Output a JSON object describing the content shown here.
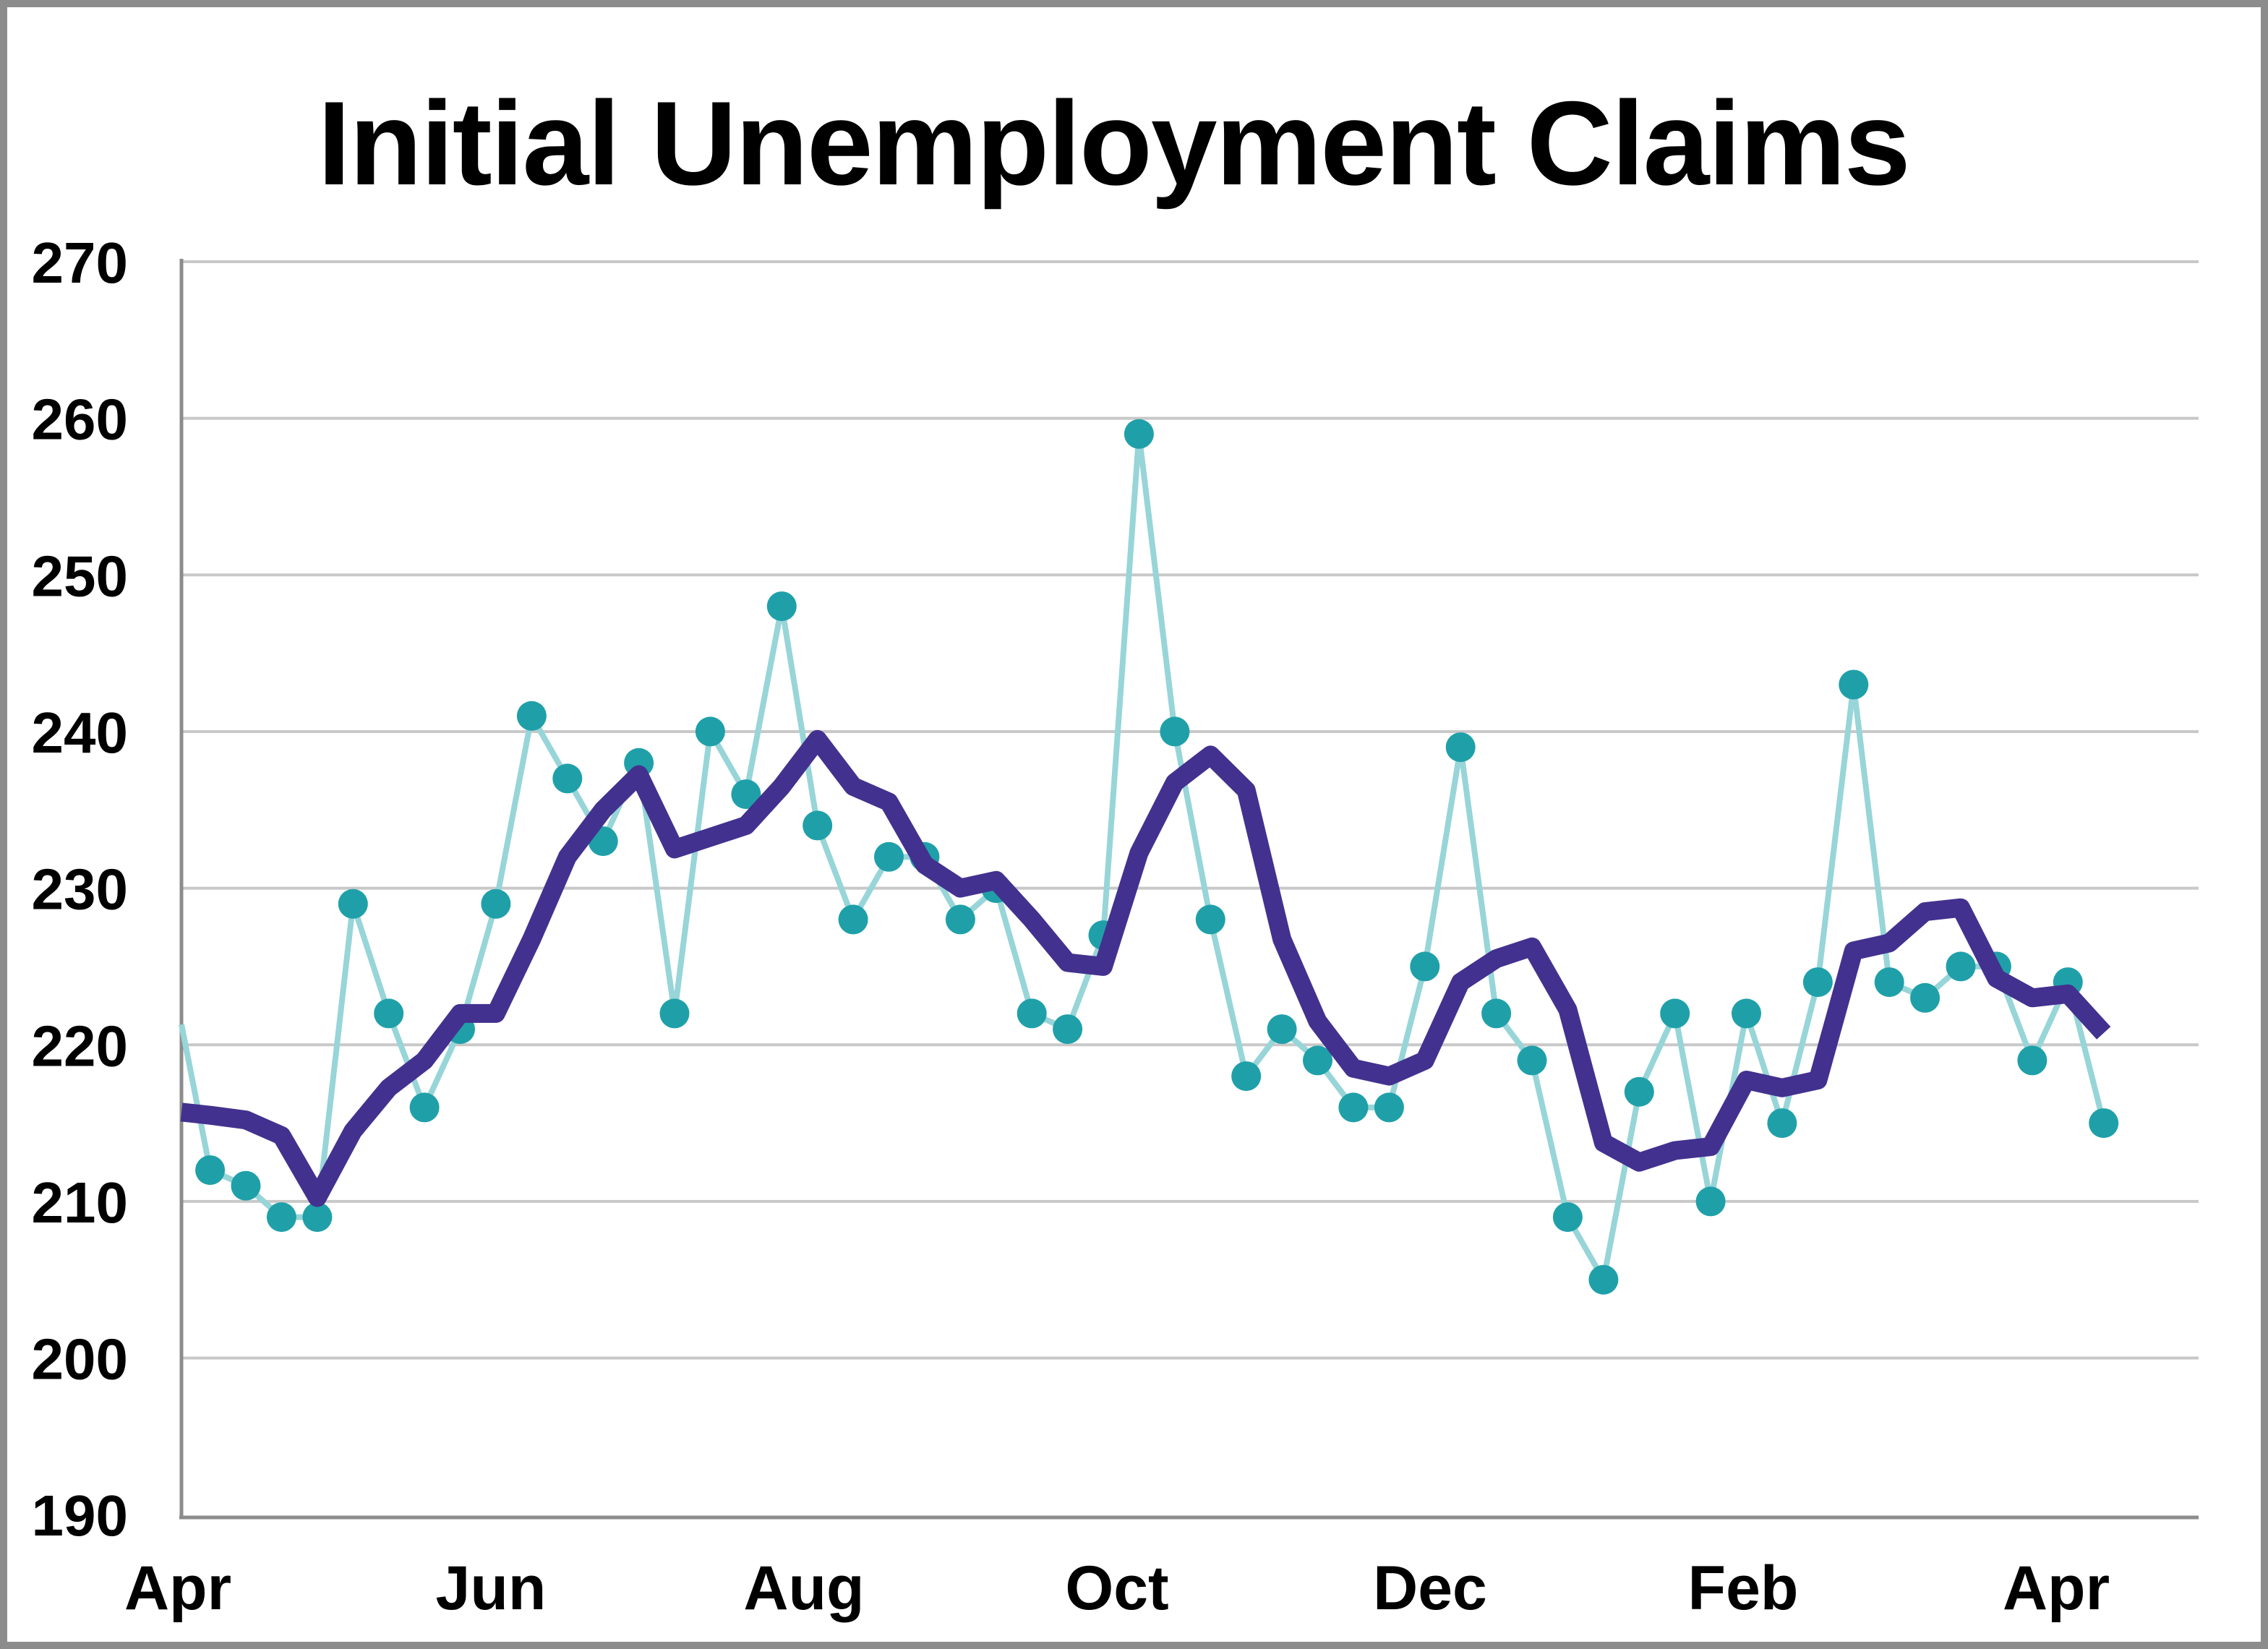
{
  "title": "Initial Unemployment Claims",
  "colors": {
    "background": "#FFFFFF",
    "page_border": "#8C8C8C",
    "axis_spine": "#8C8C8C",
    "gridline": "#C8C8C8",
    "marker_teal": "#1FA0A9",
    "marker_connector_teal": "#97D5D8",
    "moving_average_purple": "#43318F",
    "text": "#000000"
  },
  "chart_data": {
    "type": "line",
    "title": "Initial Unemployment Claims",
    "grid": "horizontal",
    "legend": "none",
    "ylim": [
      190,
      270
    ],
    "y_ticks": [
      270,
      260,
      250,
      240,
      230,
      220,
      210,
      200,
      190
    ],
    "x_tick_labels": [
      "Apr",
      "Jun",
      "Aug",
      "Oct",
      "Dec",
      "Feb",
      "Apr"
    ],
    "x_unit": "weeks",
    "series": [
      {
        "id": "teal-dots-weekly-claims",
        "style": "line+markers",
        "marker_color": "#1FA0A9",
        "line_color": "#97D5D8",
        "left_edge_value": 221.3,
        "values": [
          212,
          211,
          209,
          209,
          229,
          222,
          216,
          221,
          229,
          241,
          237,
          233,
          238,
          222,
          240,
          236,
          248,
          234,
          228,
          232,
          232,
          228,
          230,
          222,
          221,
          227,
          259,
          240,
          228,
          218,
          221,
          219,
          216,
          216,
          225,
          239,
          222,
          219,
          209,
          205,
          217,
          222,
          210,
          222,
          215,
          224,
          243,
          224,
          223,
          225,
          225,
          219,
          224,
          215
        ]
      },
      {
        "id": "purple-4-week-moving-average",
        "style": "line",
        "line_color": "#43318F",
        "left_edge_value": 215.7,
        "values": [
          215.5,
          215.2,
          214.2,
          210.25,
          214.5,
          217.25,
          219,
          222,
          222,
          226.75,
          232,
          235,
          237.25,
          232.5,
          233.25,
          234,
          236.5,
          239.5,
          236.5,
          235.5,
          231.5,
          230,
          230.5,
          228,
          225.25,
          225,
          232.25,
          236.75,
          238.5,
          236.25,
          226.75,
          221.5,
          218.5,
          218,
          219,
          224,
          225.5,
          226.25,
          222.25,
          213.75,
          212.5,
          213.25,
          213.5,
          217.75,
          217.25,
          217.75,
          226,
          226.5,
          228.5,
          228.75,
          224.25,
          223,
          223.25,
          220.75
        ]
      }
    ]
  }
}
